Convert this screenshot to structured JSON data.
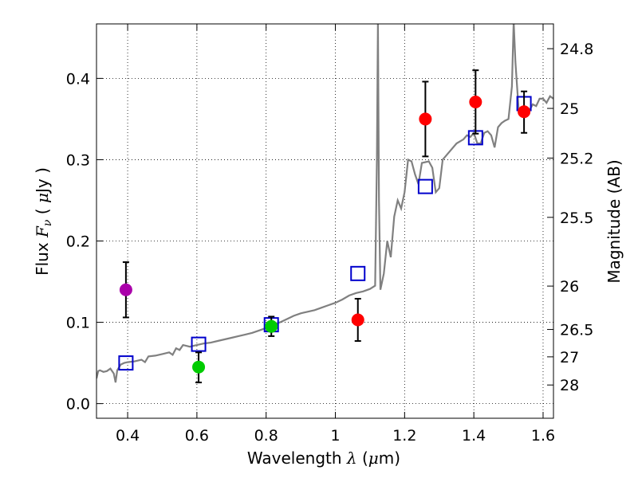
{
  "chart_data": {
    "type": "scatter",
    "xlabel": "Wavelength",
    "xlabel_symbol": "λ",
    "xlabel_unit_open": " (",
    "xlabel_unit_mu": "μ",
    "xlabel_unit_rest": "m)",
    "ylabel": "Flux",
    "ylabel_symbol": "F",
    "ylabel_sub": "ν",
    "ylabel_unit_open": " ( ",
    "ylabel_unit_mu": "μ",
    "ylabel_unit_rest": "Jy )",
    "y2label": "Magnitude (AB)",
    "xlim": [
      0.31,
      1.63
    ],
    "ylim": [
      -0.018,
      0.467
    ],
    "grid": true,
    "x_ticks": [
      {
        "value": 0.4,
        "label": "0.4"
      },
      {
        "value": 0.6,
        "label": "0.6"
      },
      {
        "value": 0.8,
        "label": "0.8"
      },
      {
        "value": 1.0,
        "label": "1"
      },
      {
        "value": 1.2,
        "label": "1.2"
      },
      {
        "value": 1.4,
        "label": "1.4"
      },
      {
        "value": 1.6,
        "label": "1.6"
      }
    ],
    "y_ticks": [
      {
        "value": 0.0,
        "label": "0.0"
      },
      {
        "value": 0.1,
        "label": "0.1"
      },
      {
        "value": 0.2,
        "label": "0.2"
      },
      {
        "value": 0.3,
        "label": "0.3"
      },
      {
        "value": 0.4,
        "label": "0.4"
      }
    ],
    "y2_ticks": [
      {
        "value": 24.8,
        "label": "24.8"
      },
      {
        "value": 25,
        "label": "25"
      },
      {
        "value": 25.2,
        "label": "25.2"
      },
      {
        "value": 25.5,
        "label": "25.5"
      },
      {
        "value": 26,
        "label": "26"
      },
      {
        "value": 26.5,
        "label": "26.5"
      },
      {
        "value": 27,
        "label": "27"
      },
      {
        "value": 28,
        "label": "28"
      }
    ],
    "colors": {
      "spectrum": "#808080",
      "model": "#0000cc",
      "purple": "#aa00aa",
      "green": "#00cc00",
      "red": "#ff0000",
      "errorbar": "#000000"
    },
    "spectrum": [
      [
        0.31,
        0.031
      ],
      [
        0.315,
        0.04
      ],
      [
        0.32,
        0.041
      ],
      [
        0.33,
        0.039
      ],
      [
        0.34,
        0.04
      ],
      [
        0.35,
        0.043
      ],
      [
        0.36,
        0.037
      ],
      [
        0.365,
        0.026
      ],
      [
        0.37,
        0.041
      ],
      [
        0.38,
        0.048
      ],
      [
        0.39,
        0.05
      ],
      [
        0.4,
        0.051
      ],
      [
        0.42,
        0.052
      ],
      [
        0.44,
        0.054
      ],
      [
        0.45,
        0.051
      ],
      [
        0.46,
        0.058
      ],
      [
        0.48,
        0.059
      ],
      [
        0.5,
        0.061
      ],
      [
        0.52,
        0.063
      ],
      [
        0.53,
        0.06
      ],
      [
        0.54,
        0.068
      ],
      [
        0.55,
        0.066
      ],
      [
        0.56,
        0.072
      ],
      [
        0.58,
        0.07
      ],
      [
        0.6,
        0.072
      ],
      [
        0.62,
        0.074
      ],
      [
        0.64,
        0.075
      ],
      [
        0.66,
        0.077
      ],
      [
        0.68,
        0.079
      ],
      [
        0.7,
        0.081
      ],
      [
        0.72,
        0.083
      ],
      [
        0.74,
        0.085
      ],
      [
        0.76,
        0.087
      ],
      [
        0.78,
        0.09
      ],
      [
        0.8,
        0.093
      ],
      [
        0.81,
        0.101
      ],
      [
        0.82,
        0.097
      ],
      [
        0.84,
        0.1
      ],
      [
        0.86,
        0.104
      ],
      [
        0.88,
        0.108
      ],
      [
        0.9,
        0.111
      ],
      [
        0.92,
        0.113
      ],
      [
        0.94,
        0.115
      ],
      [
        0.96,
        0.118
      ],
      [
        0.98,
        0.121
      ],
      [
        1.0,
        0.124
      ],
      [
        1.02,
        0.128
      ],
      [
        1.04,
        0.133
      ],
      [
        1.06,
        0.136
      ],
      [
        1.08,
        0.138
      ],
      [
        1.1,
        0.141
      ],
      [
        1.115,
        0.145
      ],
      [
        1.12,
        0.3
      ],
      [
        1.123,
        0.47
      ],
      [
        1.126,
        0.25
      ],
      [
        1.13,
        0.14
      ],
      [
        1.14,
        0.16
      ],
      [
        1.15,
        0.2
      ],
      [
        1.16,
        0.18
      ],
      [
        1.17,
        0.23
      ],
      [
        1.18,
        0.25
      ],
      [
        1.19,
        0.24
      ],
      [
        1.2,
        0.26
      ],
      [
        1.21,
        0.3
      ],
      [
        1.22,
        0.298
      ],
      [
        1.23,
        0.282
      ],
      [
        1.24,
        0.27
      ],
      [
        1.25,
        0.296
      ],
      [
        1.27,
        0.298
      ],
      [
        1.28,
        0.29
      ],
      [
        1.29,
        0.26
      ],
      [
        1.3,
        0.265
      ],
      [
        1.31,
        0.3
      ],
      [
        1.33,
        0.31
      ],
      [
        1.35,
        0.32
      ],
      [
        1.37,
        0.325
      ],
      [
        1.38,
        0.33
      ],
      [
        1.39,
        0.328
      ],
      [
        1.4,
        0.333
      ],
      [
        1.41,
        0.32
      ],
      [
        1.42,
        0.32
      ],
      [
        1.43,
        0.333
      ],
      [
        1.44,
        0.335
      ],
      [
        1.45,
        0.33
      ],
      [
        1.46,
        0.315
      ],
      [
        1.47,
        0.34
      ],
      [
        1.48,
        0.345
      ],
      [
        1.49,
        0.348
      ],
      [
        1.5,
        0.35
      ],
      [
        1.51,
        0.39
      ],
      [
        1.515,
        0.47
      ],
      [
        1.52,
        0.42
      ],
      [
        1.53,
        0.358
      ],
      [
        1.55,
        0.365
      ],
      [
        1.56,
        0.36
      ],
      [
        1.57,
        0.368
      ],
      [
        1.58,
        0.366
      ],
      [
        1.59,
        0.375
      ],
      [
        1.6,
        0.375
      ],
      [
        1.61,
        0.37
      ],
      [
        1.62,
        0.378
      ],
      [
        1.63,
        0.375
      ]
    ],
    "model_points": [
      {
        "x": 0.395,
        "y": 0.05
      },
      {
        "x": 0.605,
        "y": 0.073
      },
      {
        "x": 0.815,
        "y": 0.097
      },
      {
        "x": 1.065,
        "y": 0.16
      },
      {
        "x": 1.26,
        "y": 0.267
      },
      {
        "x": 1.405,
        "y": 0.327
      },
      {
        "x": 1.545,
        "y": 0.369
      }
    ],
    "observed_points": [
      {
        "x": 0.395,
        "y": 0.14,
        "err_low": 0.034,
        "err_high": 0.034,
        "color": "purple"
      },
      {
        "x": 0.605,
        "y": 0.045,
        "err_low": 0.019,
        "err_high": 0.018,
        "color": "green"
      },
      {
        "x": 0.815,
        "y": 0.095,
        "err_low": 0.012,
        "err_high": 0.012,
        "color": "green"
      },
      {
        "x": 1.065,
        "y": 0.103,
        "err_low": 0.026,
        "err_high": 0.026,
        "color": "red"
      },
      {
        "x": 1.26,
        "y": 0.35,
        "err_low": 0.046,
        "err_high": 0.046,
        "color": "red"
      },
      {
        "x": 1.405,
        "y": 0.371,
        "err_low": 0.039,
        "err_high": 0.039,
        "color": "red"
      },
      {
        "x": 1.545,
        "y": 0.359,
        "err_low": 0.026,
        "err_high": 0.025,
        "color": "red"
      }
    ]
  }
}
